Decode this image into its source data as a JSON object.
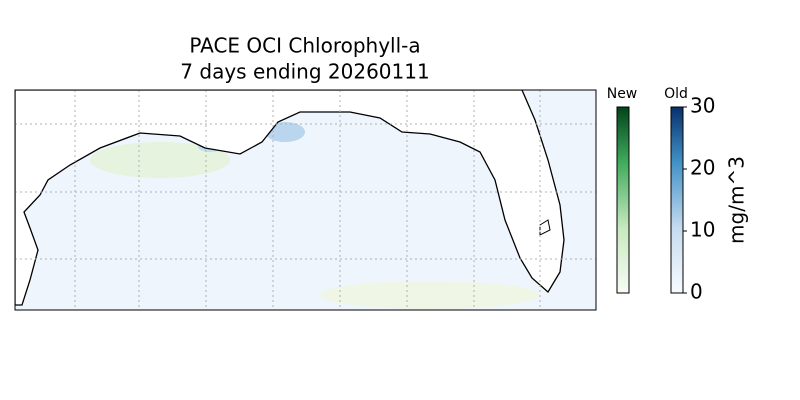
{
  "title": [
    "PACE OCI Chlorophyll-a",
    "7 days ending 20260111"
  ],
  "colorbars": [
    {
      "label": "New"
    },
    {
      "label": "Old",
      "lim": [
        0,
        30
      ],
      "ticks": [
        0,
        10,
        20,
        30
      ],
      "unit": "mg/m^3"
    }
  ]
}
